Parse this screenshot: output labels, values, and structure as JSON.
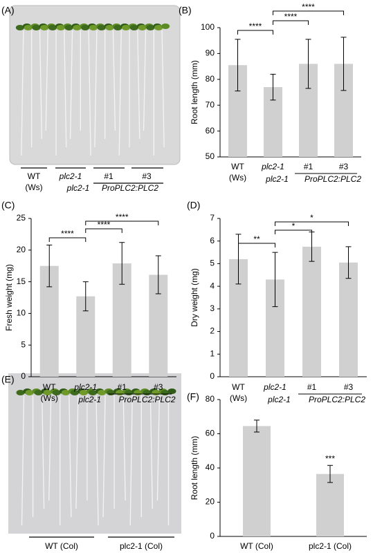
{
  "panel_labels": [
    "(A)",
    "(B)",
    "(C)",
    "(D)",
    "(E)",
    "(F)"
  ],
  "panel_a": {
    "labels": [
      "WT",
      "(Ws)",
      "plc2-1",
      "plc2-1",
      "#1",
      "#3",
      "ProPLC2:PLC2"
    ]
  },
  "panel_e": {
    "labels": [
      "WT (Col)",
      "plc2-1 (Col)"
    ]
  },
  "chart_data": [
    {
      "type": "bar",
      "ylabel": "Root length (mm)",
      "categories": [
        "WT",
        "plc2-1",
        "#1",
        "#3"
      ],
      "category_notes": [
        "(Ws)",
        null,
        null,
        null
      ],
      "group_label": [
        "plc2-1",
        "ProPLC2:PLC2"
      ],
      "values": [
        85.5,
        77,
        86,
        86
      ],
      "errors": [
        10,
        5,
        9.5,
        10.3
      ],
      "color": "#d0d0d0",
      "ylim": [
        50,
        100
      ],
      "yticks": [
        50,
        60,
        70,
        80,
        90,
        100
      ],
      "annotations": [
        "****",
        "****",
        "****"
      ]
    },
    {
      "type": "bar",
      "ylabel": "Fresh weight (mg)",
      "categories": [
        "WT",
        "plc2-1",
        "#1",
        "#3"
      ],
      "category_notes": [
        "(Ws)",
        null,
        null,
        null
      ],
      "group_label": [
        "plc2-1",
        "ProPLC2:PLC2"
      ],
      "values": [
        17.5,
        12.7,
        17.9,
        16.1
      ],
      "errors": [
        3.3,
        2.3,
        3.3,
        3
      ],
      "color": "#d0d0d0",
      "ylim": [
        0,
        25
      ],
      "yticks": [
        0,
        5,
        10,
        15,
        20,
        25
      ],
      "annotations": [
        "****",
        "****",
        "****"
      ]
    },
    {
      "type": "bar",
      "ylabel": "Dry weight  (mg)",
      "categories": [
        "WT",
        "plc2-1",
        "#1",
        "#3"
      ],
      "category_notes": [
        "(Ws)",
        null,
        null,
        null
      ],
      "group_label": [
        "plc2-1",
        "ProPLC2:PLC2"
      ],
      "values": [
        5.2,
        4.3,
        5.75,
        5.05
      ],
      "errors": [
        1.1,
        1.2,
        0.65,
        0.7
      ],
      "color": "#d0d0d0",
      "ylim": [
        0,
        7
      ],
      "yticks": [
        0,
        1,
        2,
        3,
        4,
        5,
        6,
        7
      ],
      "annotations": [
        "**",
        "*",
        "*"
      ]
    },
    {
      "type": "bar",
      "ylabel": "Root length (mm)",
      "categories": [
        "WT (Col)",
        "plc2-1 (Col)"
      ],
      "values": [
        64.5,
        36.5
      ],
      "errors": [
        3.5,
        5
      ],
      "color": "#d0d0d0",
      "ylim": [
        0,
        80
      ],
      "yticks": [
        0,
        20,
        40,
        60,
        80
      ],
      "annotations": [
        "***"
      ]
    }
  ]
}
